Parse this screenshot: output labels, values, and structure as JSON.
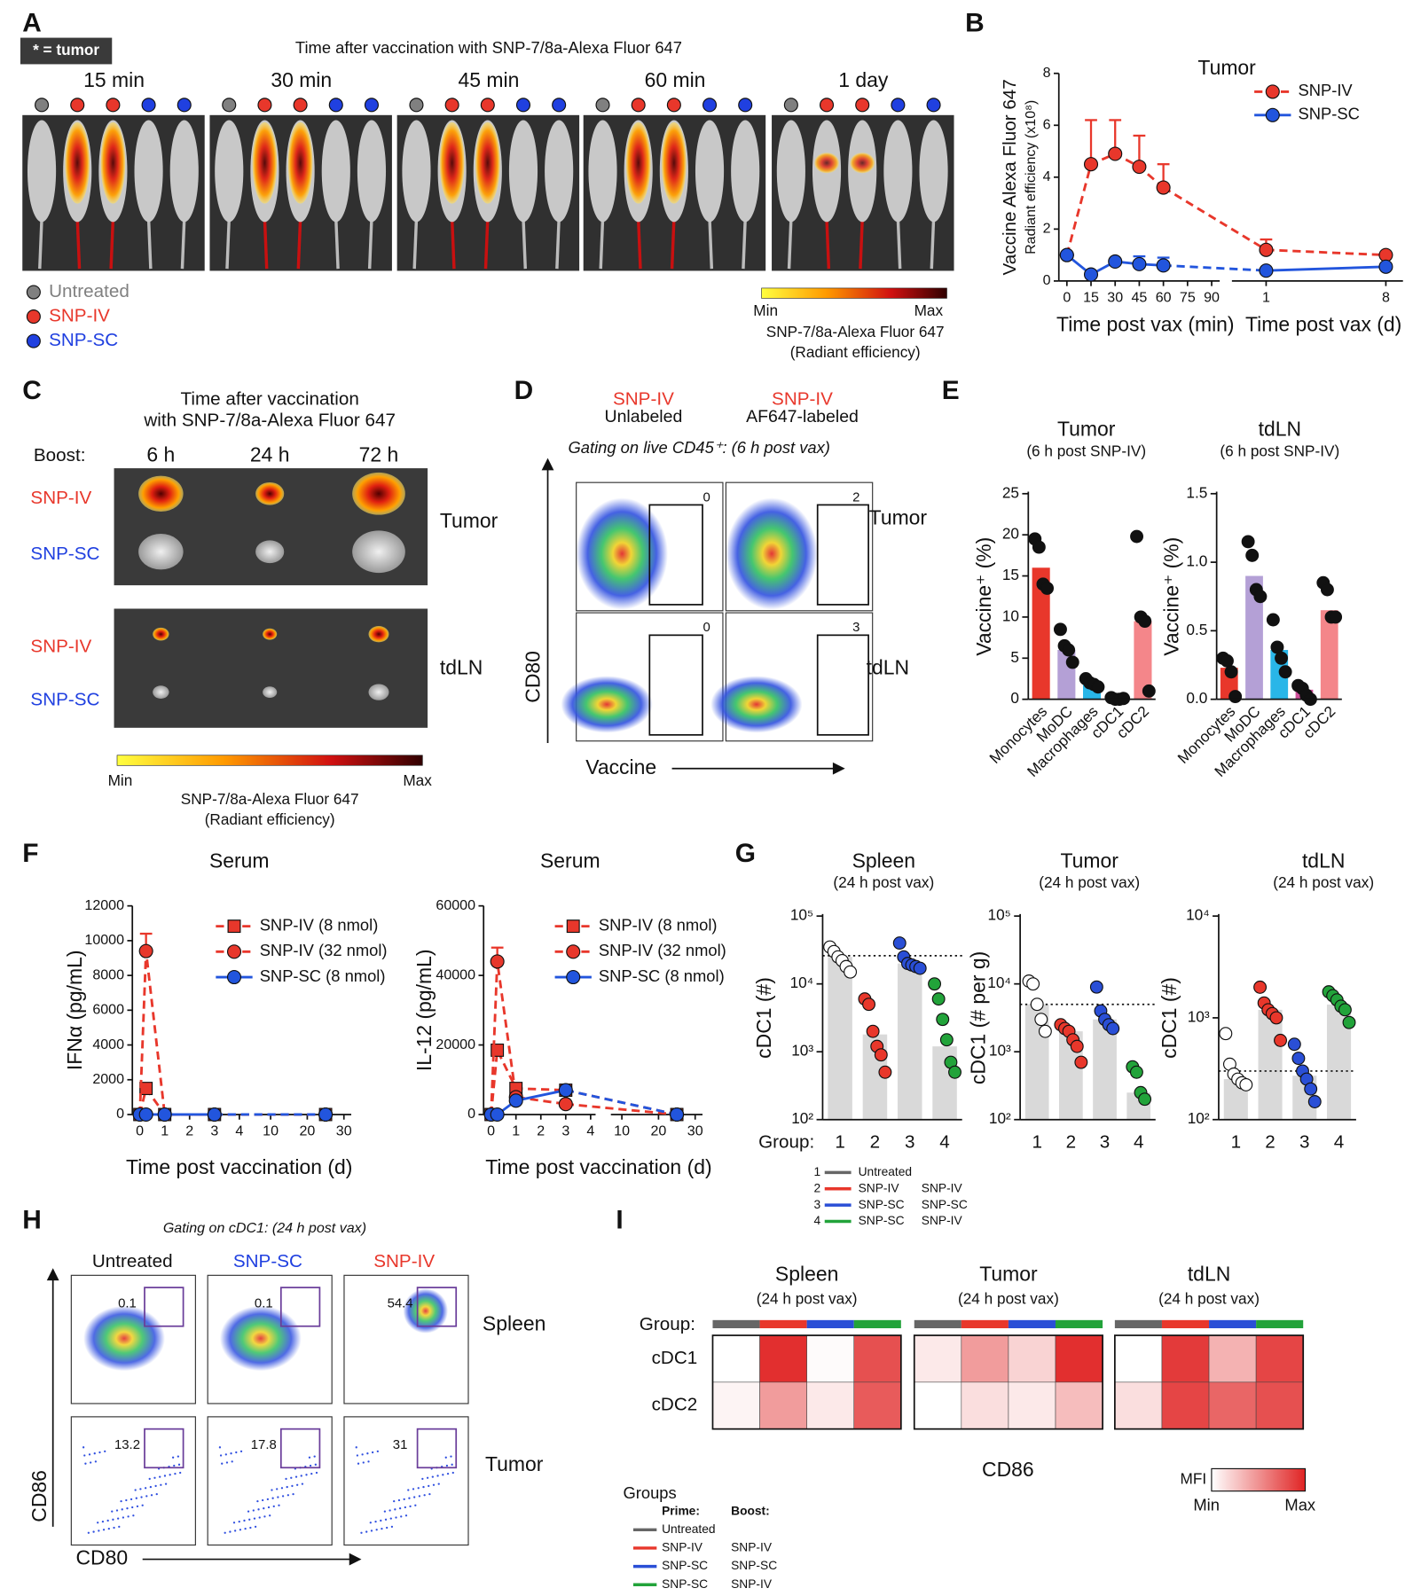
{
  "panel_labels": [
    "A",
    "B",
    "C",
    "D",
    "E",
    "F",
    "G",
    "H",
    "I"
  ],
  "panel_a": {
    "tumor_key": "* = tumor",
    "title": "Time after vaccination with SNP-7/8a-Alexa Fluor 647",
    "times": [
      "15 min",
      "30 min",
      "45 min",
      "60 min",
      "1 day"
    ],
    "legend": [
      "Untreated",
      "SNP-IV",
      "SNP-SC"
    ],
    "legend_colors": [
      "#808080",
      "#e8372b",
      "#2040e0"
    ],
    "scale_min": "Min",
    "scale_max": "Max",
    "scale_label": "SNP-7/8a-Alexa Fluor 647",
    "scale_unit": "(Radiant efficiency)"
  },
  "panel_c": {
    "title": [
      "Time after vaccination",
      "with SNP-7/8a-Alexa Fluor 647"
    ],
    "boost_label": "Boost:",
    "times": [
      "6 h",
      "24 h",
      "72 h"
    ],
    "rows": [
      "SNP-IV",
      "SNP-SC",
      "SNP-IV",
      "SNP-SC"
    ],
    "tissues": [
      "Tumor",
      "tdLN"
    ],
    "scale_min": "Min",
    "scale_max": "Max",
    "scale_label": "SNP-7/8a-Alexa Fluor 647",
    "scale_unit": "(Radiant efficiency)"
  },
  "panel_d": {
    "columns": [
      [
        "SNP-IV",
        "Unlabeled"
      ],
      [
        "SNP-IV",
        "AF647-labeled"
      ]
    ],
    "gating": "Gating on live CD45⁺: (6 h post vax)",
    "gates": [
      0,
      2,
      0,
      3
    ],
    "tissues": [
      "Tumor",
      "tdLN"
    ],
    "y_label": "CD80",
    "x_label": "Vaccine"
  },
  "panel_h": {
    "gating": "Gating on cDC1: (24 h post vax)",
    "columns": [
      "Untreated",
      "SNP-SC",
      "SNP-IV"
    ],
    "gates": [
      0.1,
      0.1,
      54.4,
      13.2,
      17.8,
      31
    ],
    "tissues": [
      "Spleen",
      "Tumor"
    ],
    "y_label": "CD86",
    "x_label": "CD80"
  },
  "group_legend": {
    "title": "Groups",
    "prime": "Prime:",
    "boost": "Boost:",
    "numbers": [
      "1",
      "2",
      "3",
      "4"
    ],
    "colors": [
      "#666666",
      "#e8372b",
      "#2a4fd6",
      "#22a33a"
    ],
    "prime_names": [
      "Untreated",
      "SNP-IV",
      "SNP-SC",
      "SNP-SC"
    ],
    "boost_names": [
      null,
      "SNP-IV",
      "SNP-SC",
      "SNP-IV"
    ]
  },
  "chart_data": [
    {
      "type": "line",
      "title": "Tumor",
      "ylabel": "Vaccine Alexa Fluor 647",
      "ylabel_sub": "Radiant efficiency (x10⁸)",
      "xlabel": "Time post vax (min)",
      "x2label": "Time post vax (d)",
      "x": [
        0,
        15,
        30,
        45,
        60
      ],
      "xlim": [
        -5,
        95
      ],
      "xticks": [
        0,
        15,
        30,
        45,
        60,
        75,
        90
      ],
      "x2": [
        1,
        8
      ],
      "x2lim": [
        -1,
        9
      ],
      "x2ticks": [
        1,
        8
      ],
      "ylim": [
        0,
        8
      ],
      "yticks": [
        0,
        2,
        4,
        6,
        8
      ],
      "legend": "upper right",
      "series": [
        {
          "name": "SNP-IV",
          "color": "#e8372b",
          "marker": "circle",
          "dash": true,
          "values": [
            1.0,
            4.5,
            4.9,
            4.4,
            3.6
          ],
          "errors": [
            null,
            1.7,
            1.3,
            1.2,
            0.9
          ],
          "values2": [
            1.2,
            1.0
          ],
          "errors2": [
            0.4,
            null
          ]
        },
        {
          "name": "SNP-SC",
          "color": "#2255dd",
          "marker": "circle",
          "dash": false,
          "values": [
            1.0,
            0.25,
            0.75,
            0.65,
            0.6
          ],
          "errors": [
            null,
            null,
            null,
            0.3,
            0.3
          ],
          "values2": [
            0.4,
            0.55
          ],
          "errors2": [
            null,
            null
          ]
        }
      ]
    },
    {
      "type": "bar_dots",
      "title": "Tumor",
      "subtitle": "(6 h post SNP-IV)",
      "ylabel": "Vaccine⁺ (%)",
      "categories": [
        "Monocytes",
        "MoDC",
        "Macrophages",
        "cDC1",
        "cDC2"
      ],
      "colors": [
        "#e8372b",
        "#b4a0d6",
        "#29b6e8",
        "#d0509a",
        "#f4868a"
      ],
      "values": [
        16,
        6,
        2,
        0.1,
        9.5
      ],
      "points": [
        [
          19.5,
          18.5,
          14,
          13.5
        ],
        [
          8.5,
          6.5,
          6,
          4.5
        ],
        [
          2.5,
          2,
          1.8,
          1.5
        ],
        [
          0.2,
          0,
          0,
          0.1
        ],
        [
          19.8,
          10,
          9.5,
          1
        ]
      ],
      "ylim": [
        0,
        25
      ],
      "yticks": [
        0,
        5,
        10,
        15,
        20,
        25
      ]
    },
    {
      "type": "bar_dots",
      "title": "tdLN",
      "subtitle": "(6 h post SNP-IV)",
      "ylabel": "Vaccine⁺ (%)",
      "categories": [
        "Monocytes",
        "MoDC",
        "Macrophages",
        "cDC1",
        "cDC2"
      ],
      "colors": [
        "#e8372b",
        "#b4a0d6",
        "#29b6e8",
        "#d0509a",
        "#f4868a"
      ],
      "values": [
        0.23,
        0.9,
        0.36,
        0.07,
        0.65
      ],
      "points": [
        [
          0.3,
          0.28,
          0.2,
          0.02
        ],
        [
          1.15,
          1.05,
          0.8,
          0.75
        ],
        [
          0.58,
          0.38,
          0.3,
          0.2
        ],
        [
          0.1,
          0.08,
          0.03,
          0
        ],
        [
          0.85,
          0.8,
          0.6,
          0.6
        ]
      ],
      "ylim": [
        0,
        1.5
      ],
      "yticks": [
        {
          "value": 0,
          "label": "0.0"
        },
        0.5,
        {
          "value": 1,
          "label": "1.0"
        },
        1.5
      ]
    },
    {
      "type": "line",
      "title": "Serum",
      "ylabel": "IFNα (pg/mL)",
      "xlabel": "Time post vaccination (d)",
      "x": [
        0,
        0.25,
        1,
        3
      ],
      "xlim": [
        -0.3,
        4.2
      ],
      "xticks": [
        0,
        1,
        2,
        3,
        4
      ],
      "x2": [
        25
      ],
      "x2lim": [
        7,
        32
      ],
      "x2ticks": [
        10,
        20,
        30
      ],
      "ylim": [
        0,
        12000
      ],
      "yticks": [
        0,
        2000,
        4000,
        6000,
        8000,
        10000,
        12000
      ],
      "legend": "upper right",
      "series": [
        {
          "name": "SNP-IV (8 nmol)",
          "color": "#e8372b",
          "marker": "square",
          "dash": true,
          "values": [
            0,
            1500,
            0,
            0
          ],
          "errors": [
            null,
            null,
            null,
            null
          ],
          "values2": [
            0
          ],
          "errors2": [
            null
          ]
        },
        {
          "name": "SNP-IV (32 nmol)",
          "color": "#e8372b",
          "marker": "circle",
          "dash": true,
          "values": [
            0,
            9400,
            0,
            0
          ],
          "errors": [
            null,
            1000,
            null,
            null
          ],
          "values2": [
            0
          ],
          "errors2": [
            null
          ]
        },
        {
          "name": "SNP-SC (8 nmol)",
          "color": "#2255dd",
          "marker": "circle",
          "dash": false,
          "values": [
            0,
            0,
            0,
            0
          ],
          "errors": [
            null,
            null,
            null,
            null
          ],
          "values2": [
            0
          ],
          "errors2": [
            null
          ]
        }
      ]
    },
    {
      "type": "line",
      "title": "Serum",
      "ylabel": "IL-12 (pg/mL)",
      "xlabel": "Time post vaccination (d)",
      "x": [
        0,
        0.25,
        1,
        3
      ],
      "xlim": [
        -0.3,
        4.2
      ],
      "xticks": [
        0,
        1,
        2,
        3,
        4
      ],
      "x2": [
        25
      ],
      "x2lim": [
        7,
        32
      ],
      "x2ticks": [
        10,
        20,
        30
      ],
      "ylim": [
        0,
        60000
      ],
      "yticks": [
        0,
        20000,
        40000,
        60000
      ],
      "legend": "upper right",
      "series": [
        {
          "name": "SNP-IV (8 nmol)",
          "color": "#e8372b",
          "marker": "square",
          "dash": true,
          "values": [
            0,
            18500,
            7500,
            7000
          ],
          "errors": [
            null,
            null,
            null,
            null
          ],
          "values2": [
            0
          ],
          "errors2": [
            null
          ]
        },
        {
          "name": "SNP-IV (32 nmol)",
          "color": "#e8372b",
          "marker": "circle",
          "dash": true,
          "values": [
            0,
            44000,
            5000,
            3000
          ],
          "errors": [
            null,
            4000,
            null,
            null
          ],
          "values2": [
            0
          ],
          "errors2": [
            null
          ]
        },
        {
          "name": "SNP-SC (8 nmol)",
          "color": "#2255dd",
          "marker": "circle",
          "dash": false,
          "values": [
            0,
            0,
            4000,
            7000
          ],
          "errors": [
            null,
            null,
            null,
            null
          ],
          "values2": [
            0
          ],
          "errors2": [
            null
          ]
        }
      ]
    },
    {
      "type": "bar_dots",
      "title": "Spleen",
      "subtitle": "(24 h post vax)",
      "ylabel": "cDC1 (#)",
      "xlabel": "Group:",
      "categories": [
        "1",
        "2",
        "3",
        "4"
      ],
      "bar_color": "#d9d9d9",
      "point_colors": [
        "#ffffff",
        "#e8372b",
        "#2a4fd6",
        "#22a33a"
      ],
      "log_scale": true,
      "values": [
        25000,
        1800,
        20000,
        1200
      ],
      "threshold": 26000,
      "points": [
        [
          35000,
          30000,
          25000,
          22000,
          18000,
          15000
        ],
        [
          6000,
          5000,
          2000,
          1200,
          900,
          500
        ],
        [
          40000,
          25000,
          20000,
          19000,
          18000,
          17000
        ],
        [
          10000,
          6000,
          3000,
          1500,
          700,
          500
        ]
      ],
      "ylim": [
        100,
        100000
      ],
      "yticks": [
        {
          "value": 100,
          "label": "10²"
        },
        {
          "value": 1000,
          "label": "10³"
        },
        {
          "value": 10000,
          "label": "10⁴"
        },
        {
          "value": 100000,
          "label": "10⁵"
        }
      ]
    },
    {
      "type": "bar_dots",
      "title": "Tumor",
      "subtitle": "(24 h post vax)",
      "ylabel": "cDC1 (# per g)",
      "categories": [
        "1",
        "2",
        "3",
        "4"
      ],
      "bar_color": "#d9d9d9",
      "point_colors": [
        "#ffffff",
        "#e8372b",
        "#2a4fd6",
        "#22a33a"
      ],
      "log_scale": true,
      "values": [
        5000,
        2000,
        3000,
        250
      ],
      "threshold": 5000,
      "points": [
        [
          11000,
          10000,
          5000,
          3000,
          2000
        ],
        [
          2500,
          2200,
          2000,
          1500,
          1200,
          700
        ],
        [
          9000,
          4000,
          3000,
          2500,
          2200
        ],
        [
          600,
          500,
          250,
          200
        ]
      ],
      "ylim": [
        100,
        100000
      ],
      "yticks": [
        {
          "value": 100,
          "label": "10²"
        },
        {
          "value": 1000,
          "label": "10³"
        },
        {
          "value": 10000,
          "label": "10⁴"
        },
        {
          "value": 100000,
          "label": "10⁵"
        }
      ]
    },
    {
      "type": "bar_dots",
      "title": "tdLN",
      "subtitle": "(24 h post vax)",
      "ylabel": "cDC1 (#)",
      "categories": [
        "1",
        "2",
        "3",
        "4"
      ],
      "bar_color": "#d9d9d9",
      "point_colors": [
        "#ffffff",
        "#e8372b",
        "#2a4fd6",
        "#22a33a"
      ],
      "log_scale": true,
      "values": [
        250,
        1200,
        270,
        1350
      ],
      "threshold": 300,
      "points": [
        [
          700,
          350,
          280,
          250,
          230,
          220
        ],
        [
          2000,
          1400,
          1200,
          1100,
          1000,
          600
        ],
        [
          550,
          400,
          300,
          250,
          200,
          150
        ],
        [
          1800,
          1650,
          1500,
          1300,
          1200,
          900
        ]
      ],
      "ylim": [
        100,
        10000
      ],
      "yticks": [
        {
          "value": 100,
          "label": "10²"
        },
        {
          "value": 1000,
          "label": "10³"
        },
        {
          "value": 10000,
          "label": "10⁴"
        }
      ]
    },
    {
      "type": "heatmap",
      "group_label": "Group:",
      "group_colors": [
        "#666666",
        "#e8372b",
        "#2a4fd6",
        "#22a33a"
      ],
      "rows": [
        "cDC1",
        "cDC2"
      ],
      "color": "#e02424",
      "xlabel": "CD86",
      "legend_title": "MFI",
      "legend_min": "Min",
      "legend_max": "Max",
      "blocks": [
        {
          "title": "Spleen",
          "subtitle": "(24 h post vax)",
          "values": [
            [
              0.0,
              0.95,
              0.02,
              0.8
            ],
            [
              0.05,
              0.45,
              0.1,
              0.75
            ]
          ]
        },
        {
          "title": "Tumor",
          "subtitle": "(24 h post vax)",
          "values": [
            [
              0.1,
              0.45,
              0.2,
              0.95
            ],
            [
              0.0,
              0.15,
              0.1,
              0.3
            ]
          ]
        },
        {
          "title": "tdLN",
          "subtitle": "(24 h post vax)",
          "values": [
            [
              0.0,
              0.9,
              0.35,
              0.85
            ],
            [
              0.15,
              0.85,
              0.7,
              0.8
            ]
          ]
        }
      ]
    }
  ]
}
